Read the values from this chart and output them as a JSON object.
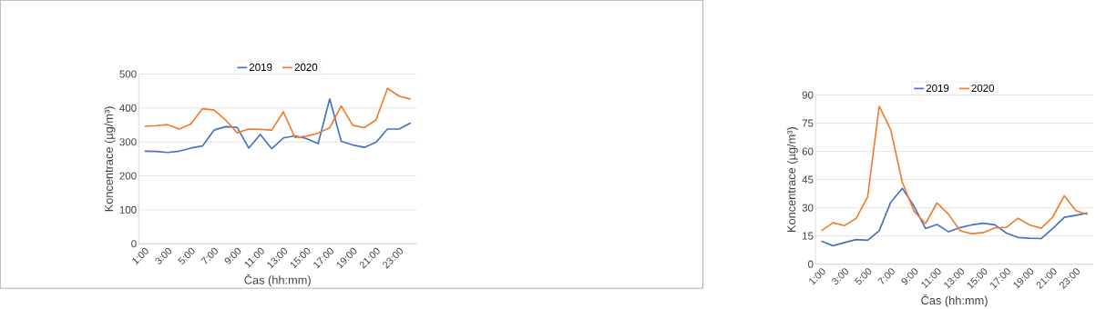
{
  "chart_data": [
    {
      "type": "line",
      "categories": [
        "1:00",
        null,
        "3:00",
        null,
        "5:00",
        null,
        "7:00",
        null,
        "9:00",
        null,
        "11:00",
        null,
        "13:00",
        null,
        "15:00",
        null,
        "17:00",
        null,
        "19:00",
        null,
        "21:00",
        null,
        "23:00",
        null
      ],
      "xlabel": "Čas (hh:mm)",
      "ylabel": "Koncentrace (µg/m³)",
      "ylim": [
        0,
        500
      ],
      "yticks": [
        0,
        100,
        200,
        300,
        400,
        500
      ],
      "grid": "y",
      "legend": "top",
      "series": [
        {
          "name": "2019",
          "color": "#4472c4",
          "values": [
            273,
            272,
            269,
            273,
            282,
            288,
            335,
            345,
            343,
            282,
            322,
            280,
            312,
            318,
            310,
            295,
            427,
            302,
            291,
            284,
            299,
            338,
            338,
            356
          ]
        },
        {
          "name": "2020",
          "color": "#ed7d31",
          "values": [
            346,
            348,
            351,
            338,
            353,
            398,
            394,
            365,
            327,
            338,
            337,
            335,
            389,
            313,
            317,
            326,
            342,
            406,
            349,
            342,
            365,
            458,
            435,
            426
          ]
        }
      ]
    },
    {
      "type": "line",
      "categories": [
        "1:00",
        null,
        "3:00",
        null,
        "5:00",
        null,
        "7:00",
        null,
        "9:00",
        null,
        "11:00",
        null,
        "13:00",
        null,
        "15:00",
        null,
        "17:00",
        null,
        "19:00",
        null,
        "21:00",
        null,
        "23:00",
        null
      ],
      "xlabel": "Čas (hh:mm)",
      "ylabel": "Koncentrace (µg/m³)",
      "ylim": [
        0,
        90
      ],
      "yticks": [
        0,
        15,
        30,
        45,
        60,
        75,
        90
      ],
      "grid": "y",
      "legend": "top",
      "series": [
        {
          "name": "2019",
          "color": "#4472c4",
          "values": [
            12.3,
            9.8,
            11.5,
            13.1,
            12.7,
            17.8,
            33,
            40.3,
            31,
            19,
            21.1,
            17.2,
            19.5,
            20.9,
            21.8,
            20.9,
            16.5,
            14.2,
            13.8,
            13.6,
            19,
            24.9,
            26,
            27.2
          ]
        },
        {
          "name": "2020",
          "color": "#ed7d31",
          "values": [
            17.8,
            22,
            20.5,
            24.3,
            35.8,
            84,
            71.5,
            43.5,
            28.3,
            21.6,
            32.6,
            26.5,
            17.7,
            16.2,
            16.8,
            19.3,
            19.6,
            24.4,
            20.9,
            19.1,
            25.1,
            36.4,
            28.5,
            26.4
          ]
        }
      ]
    }
  ]
}
